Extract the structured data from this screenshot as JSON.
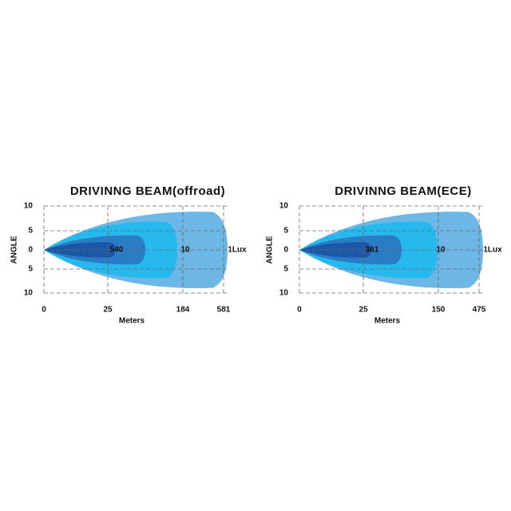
{
  "panels": [
    {
      "title": "DRIVINNG  BEAM(offroad)",
      "y_axis_label": "ANGLE",
      "y_ticks": [
        "10",
        "5",
        "0",
        "5",
        "10"
      ],
      "x_ticks": [
        "0",
        "25",
        "184",
        "581"
      ],
      "x_axis_label": "Meters",
      "zone_labels": [
        "540",
        "10",
        "1Lux"
      ]
    },
    {
      "title": "DRIVINNG  BEAM(ECE)",
      "y_axis_label": "ANGLE",
      "y_ticks": [
        "10",
        "5",
        "0",
        "5",
        "10"
      ],
      "x_ticks": [
        "0",
        "25",
        "150",
        "475"
      ],
      "x_axis_label": "Meters",
      "zone_labels": [
        "361",
        "10",
        "1Lux"
      ]
    }
  ]
}
